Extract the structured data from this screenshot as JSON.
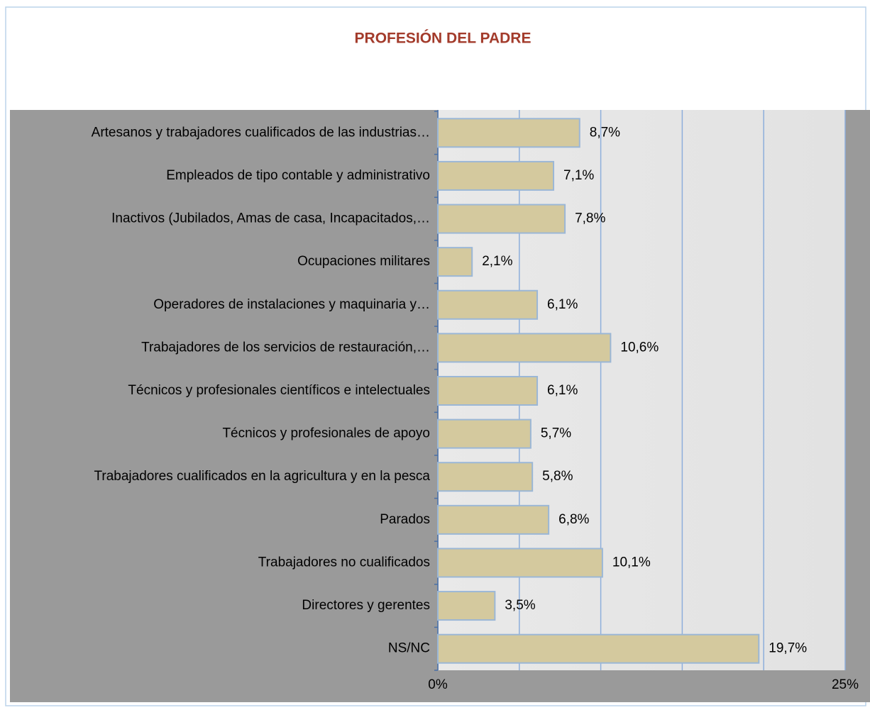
{
  "chart_data": {
    "type": "barh",
    "title": "PROFESIÓN DEL PADRE",
    "categories": [
      "Artesanos y trabajadores cualificados de las industrias…",
      "Empleados de tipo contable y administrativo",
      "Inactivos (Jubilados, Amas de casa, Incapacitados,…",
      "Ocupaciones militares",
      "Operadores de instalaciones y maquinaria y…",
      "Trabajadores de los servicios de restauración,…",
      "Técnicos y profesionales científicos e intelectuales",
      "Técnicos y profesionales de apoyo",
      "Trabajadores cualificados en la agricultura y en la pesca",
      "Parados",
      "Trabajadores no cualificados",
      "Directores y gerentes",
      "NS/NC"
    ],
    "values": [
      8.7,
      7.1,
      7.8,
      2.1,
      6.1,
      10.6,
      6.1,
      5.7,
      5.8,
      6.8,
      10.1,
      3.5,
      19.7
    ],
    "value_labels": [
      "8,7%",
      "7,1%",
      "7,8%",
      "2,1%",
      "6,1%",
      "10,6%",
      "6,1%",
      "5,7%",
      "5,8%",
      "6,8%",
      "10,1%",
      "3,5%",
      "19,7%"
    ],
    "color": "#d4c99e",
    "xlim": [
      0,
      25
    ],
    "xticks": [
      {
        "value": 0,
        "label": "0%"
      },
      {
        "value": 25,
        "label": "25%"
      }
    ],
    "grid_lines": [
      0,
      5,
      10,
      15,
      20,
      25
    ],
    "grid": true
  }
}
